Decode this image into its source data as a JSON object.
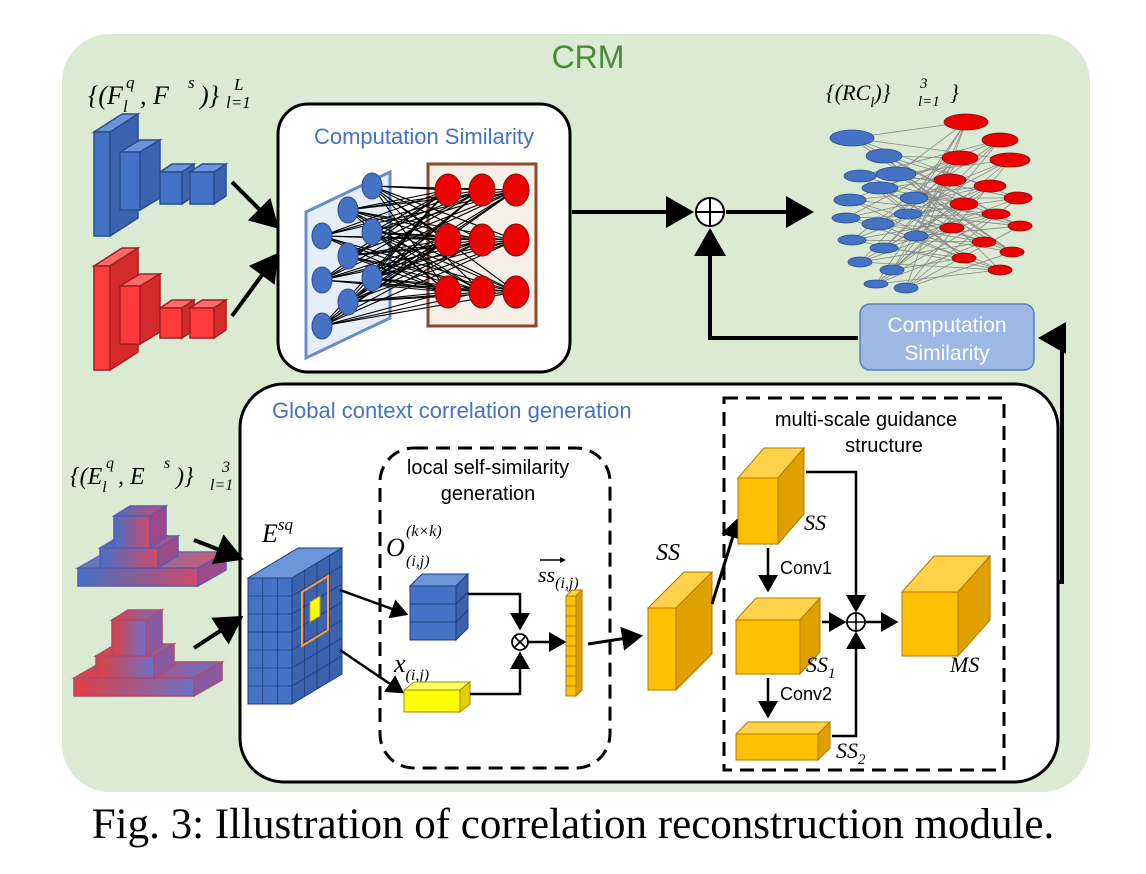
{
  "module_title": "CRM",
  "inputs": {
    "feature_pairs": "{(F",
    "feature_pairs_sub": "l",
    "feature_pairs_sup_q": "q",
    "feature_pairs_comma": ", F",
    "feature_pairs_sup_s": "s",
    "feature_pairs_close": ")}",
    "feature_pairs_range_top": "L",
    "feature_pairs_range_bottom": "l=1",
    "embedding_pairs": "{(E",
    "embedding_pairs_sub": "l",
    "embedding_pairs_sup_q": "q",
    "embedding_pairs_comma": ", E",
    "embedding_pairs_sup_s": "s",
    "embedding_pairs_close": ")}",
    "embedding_pairs_range_top": "3",
    "embedding_pairs_range_bottom": "l=1"
  },
  "output": {
    "label_open": "{(RC",
    "label_sub": "l",
    "label_close": ")}",
    "label_range_top": "3",
    "label_range_bottom": "l=1",
    "label_end": "}"
  },
  "computation_similarity_panel": {
    "title": "Computation Similarity"
  },
  "computation_similarity_box": {
    "line1": "Computation",
    "line2": "Similarity"
  },
  "global_context": {
    "title": "Global context correlation generation",
    "esq_label": "E",
    "esq_sup": "sq",
    "local_box_line1": "local self-similarity",
    "local_box_line2": "generation",
    "o_label": "O",
    "o_sup": "(k×k)",
    "o_sub": "(i,j)",
    "x_label": "x",
    "x_sub": "(i,j)",
    "ss_vec_label": "ss",
    "ss_vec_sub": "(i,j)",
    "ss_label": "SS",
    "multiscale_line1": "multi-scale guidance",
    "multiscale_line2": "structure",
    "ms_ss": "SS",
    "conv1": "Conv1",
    "ss1": "SS",
    "ss1_sub": "1",
    "conv2": "Conv2",
    "ss2": "SS",
    "ss2_sub": "2",
    "ms_label": "MS"
  },
  "caption": "Fig. 3: Illustration of correlation reconstruction module.",
  "colors": {
    "panel_bg": "#dbead2",
    "crm_title": "#4a8a3a",
    "blue_title": "#4472c4",
    "blue_block": "#4472c4",
    "red_block": "#ff2a2a",
    "yellow_block": "#ffc000",
    "cs_box_fill": "#9db8e3",
    "node_blue": "#4472c4",
    "node_red": "#ee0000"
  }
}
